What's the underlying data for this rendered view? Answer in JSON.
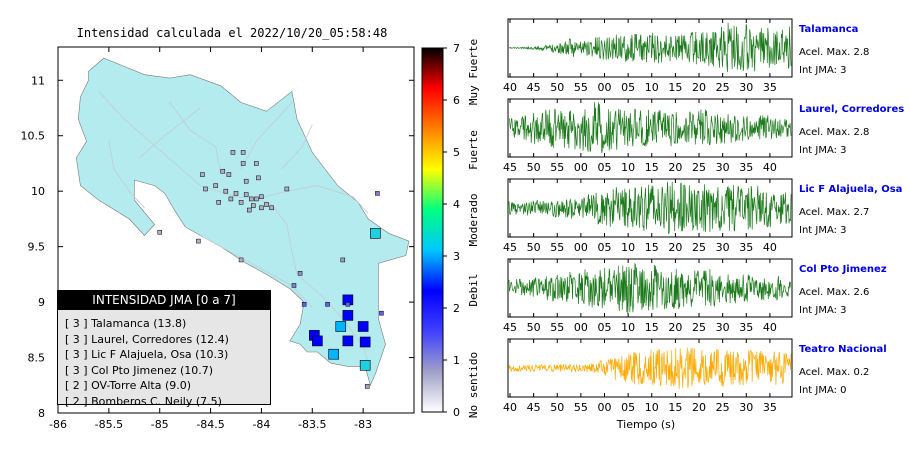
{
  "chart_data": [
    {
      "type": "map",
      "title": "Intensidad calculada el 2022/10/20_05:58:48",
      "xlim": [
        -86,
        -82.5
      ],
      "ylim": [
        8,
        11.3
      ],
      "x_ticks": [
        "-86",
        "-85.5",
        "-85",
        "-84.5",
        "-84",
        "-83.5",
        "-83"
      ],
      "y_ticks": [
        "8",
        "8.5",
        "9",
        "9.5",
        "10",
        "10.5",
        "11"
      ],
      "colorbar": {
        "range": [
          0,
          7
        ],
        "ticks": [
          "0",
          "1",
          "2",
          "3",
          "4",
          "5",
          "6",
          "7"
        ],
        "labels": [
          "No sentido",
          "Debil",
          "Moderado",
          "Fuerte",
          "Muy Fuerte"
        ],
        "colors": [
          "#ffffff",
          "#a0a0c8",
          "#4040ff",
          "#0000ff",
          "#00c8ff",
          "#00ff80",
          "#ffff00",
          "#ff8000",
          "#ff0000",
          "#000000"
        ]
      },
      "legend": {
        "title": "INTENSIDAD JMA [0 a 7]",
        "items": [
          "[ 3 ]  Talamanca (13.8)",
          "[ 3 ]  Laurel, Corredores (12.4)",
          "[ 3 ]  Lic F Alajuela, Osa (10.3)",
          "[ 3 ]  Col Pto Jimenez (10.7)",
          "[ 2 ]  OV-Torre Alta (9.0)",
          "[ 2 ]  Bomberos C. Neily (7.5)"
        ]
      },
      "stations": [
        {
          "lon": -82.88,
          "lat": 9.62,
          "color": "#20d0e0"
        },
        {
          "lon": -83.15,
          "lat": 9.02,
          "color": "#0000ff"
        },
        {
          "lon": -83.15,
          "lat": 8.88,
          "color": "#0000ff"
        },
        {
          "lon": -83.22,
          "lat": 8.78,
          "color": "#00b4ff"
        },
        {
          "lon": -83.48,
          "lat": 8.7,
          "color": "#0000ff"
        },
        {
          "lon": -83.45,
          "lat": 8.65,
          "color": "#0000ff"
        },
        {
          "lon": -83.15,
          "lat": 8.65,
          "color": "#0000ff"
        },
        {
          "lon": -83.0,
          "lat": 8.78,
          "color": "#0000ff"
        },
        {
          "lon": -82.98,
          "lat": 8.64,
          "color": "#0000ff"
        },
        {
          "lon": -83.29,
          "lat": 8.53,
          "color": "#00b4ff"
        },
        {
          "lon": -82.98,
          "lat": 8.43,
          "color": "#20d0e0"
        },
        {
          "lon": -83.58,
          "lat": 8.98,
          "color": "#6060ff"
        },
        {
          "lon": -83.35,
          "lat": 8.98,
          "color": "#6060ff"
        },
        {
          "lon": -83.15,
          "lat": 8.98,
          "color": "#6060ff"
        },
        {
          "lon": -82.82,
          "lat": 8.9,
          "color": "#6060ff"
        },
        {
          "lon": -83.68,
          "lat": 9.15,
          "color": "#8080d0"
        },
        {
          "lon": -83.62,
          "lat": 9.26,
          "color": "#9090c8"
        },
        {
          "lon": -83.2,
          "lat": 9.38,
          "color": "#a0a0c8"
        },
        {
          "lon": -82.96,
          "lat": 8.24,
          "color": "#a0a0c8"
        },
        {
          "lon": -82.86,
          "lat": 9.98,
          "color": "#8080d0"
        },
        {
          "lon": -84.03,
          "lat": 10.12,
          "color": "#b0b0c8"
        },
        {
          "lon": -83.75,
          "lat": 10.02,
          "color": "#b0b0c8"
        },
        {
          "lon": -84.15,
          "lat": 10.09,
          "color": "#b0b0c8"
        },
        {
          "lon": -84.32,
          "lat": 10.15,
          "color": "#b0b0c8"
        },
        {
          "lon": -84.45,
          "lat": 10.05,
          "color": "#b0b0c8"
        },
        {
          "lon": -84.55,
          "lat": 10.02,
          "color": "#b0b0c8"
        },
        {
          "lon": -84.35,
          "lat": 10.0,
          "color": "#b0b0c8"
        },
        {
          "lon": -84.25,
          "lat": 9.98,
          "color": "#b0b0c8"
        },
        {
          "lon": -84.15,
          "lat": 9.97,
          "color": "#b0b0c8"
        },
        {
          "lon": -84.1,
          "lat": 9.93,
          "color": "#b0b0c8"
        },
        {
          "lon": -84.05,
          "lat": 9.93,
          "color": "#b0b0c8"
        },
        {
          "lon": -84.0,
          "lat": 9.95,
          "color": "#b0b0c8"
        },
        {
          "lon": -83.95,
          "lat": 9.88,
          "color": "#b0b0c8"
        },
        {
          "lon": -84.08,
          "lat": 9.87,
          "color": "#b0b0c8"
        },
        {
          "lon": -84.2,
          "lat": 9.9,
          "color": "#b0b0c8"
        },
        {
          "lon": -84.3,
          "lat": 9.93,
          "color": "#b0b0c8"
        },
        {
          "lon": -84.42,
          "lat": 9.9,
          "color": "#b0b0c8"
        },
        {
          "lon": -84.0,
          "lat": 9.85,
          "color": "#b0b0c8"
        },
        {
          "lon": -84.12,
          "lat": 9.83,
          "color": "#b0b0c8"
        },
        {
          "lon": -83.9,
          "lat": 9.85,
          "color": "#b0b0c8"
        },
        {
          "lon": -84.58,
          "lat": 10.15,
          "color": "#b0b0c8"
        },
        {
          "lon": -84.28,
          "lat": 10.35,
          "color": "#b0b0c8"
        },
        {
          "lon": -84.18,
          "lat": 10.35,
          "color": "#b0b0c8"
        },
        {
          "lon": -84.05,
          "lat": 10.25,
          "color": "#b0b0c8"
        },
        {
          "lon": -84.18,
          "lat": 10.25,
          "color": "#b0b0c8"
        },
        {
          "lon": -84.38,
          "lat": 10.18,
          "color": "#b0b0c8"
        },
        {
          "lon": -84.62,
          "lat": 9.55,
          "color": "#b0b0c8"
        },
        {
          "lon": -85.0,
          "lat": 9.63,
          "color": "#b0b0c8"
        },
        {
          "lon": -84.2,
          "lat": 9.38,
          "color": "#b0b0c8"
        }
      ]
    },
    {
      "type": "line",
      "xlabel": "Tiempo (s)",
      "traces": [
        {
          "name": "Talamanca",
          "acel": "Acel. Max. 2.8",
          "int": "Int JMA: 3",
          "color": "#1a7a1a",
          "x_ticks": [
            "40",
            "45",
            "50",
            "55",
            "00",
            "05",
            "10",
            "15",
            "20",
            "25",
            "30",
            "35"
          ],
          "envelope": [
            0.02,
            0.03,
            0.05,
            0.1,
            0.2,
            0.35,
            0.3,
            0.4,
            0.45,
            0.55,
            0.5,
            0.55,
            0.6,
            0.55,
            0.5,
            0.6,
            0.65,
            0.75,
            1.0,
            0.9,
            0.95,
            0.85,
            0.75,
            0.8
          ],
          "seed": 11
        },
        {
          "name": "Laurel, Corredores",
          "acel": "Acel. Max. 2.8",
          "int": "Int JMA: 3",
          "color": "#1a7a1a",
          "x_ticks": [
            "45",
            "50",
            "55",
            "00",
            "05",
            "10",
            "15",
            "20",
            "25",
            "30",
            "35",
            "40"
          ],
          "envelope": [
            0.35,
            0.45,
            0.6,
            0.7,
            0.8,
            0.75,
            0.85,
            1.0,
            0.9,
            0.8,
            0.7,
            0.75,
            0.65,
            0.7,
            0.6,
            0.65,
            0.7,
            0.6,
            0.55,
            0.5,
            0.45,
            0.5,
            0.4,
            0.35
          ],
          "seed": 23
        },
        {
          "name": "Lic F Alajuela, Osa",
          "acel": "Acel. Max. 2.7",
          "int": "Int JMA: 3",
          "color": "#1a7a1a",
          "x_ticks": [
            "45",
            "50",
            "55",
            "00",
            "05",
            "10",
            "15",
            "20",
            "25",
            "30",
            "35",
            "40"
          ],
          "envelope": [
            0.25,
            0.25,
            0.3,
            0.3,
            0.35,
            0.4,
            0.45,
            0.55,
            0.7,
            0.8,
            0.75,
            0.85,
            0.9,
            1.0,
            0.95,
            0.9,
            0.95,
            0.85,
            0.9,
            0.8,
            0.85,
            0.75,
            0.7,
            0.6
          ],
          "seed": 37
        },
        {
          "name": "Col Pto Jimenez",
          "acel": "Acel. Max. 2.6",
          "int": "Int JMA: 3",
          "color": "#1a7a1a",
          "x_ticks": [
            "45",
            "50",
            "55",
            "00",
            "05",
            "10",
            "15",
            "20",
            "25",
            "30",
            "35",
            "40"
          ],
          "envelope": [
            0.3,
            0.35,
            0.4,
            0.45,
            0.5,
            0.6,
            0.7,
            0.75,
            0.8,
            0.9,
            1.0,
            0.85,
            0.9,
            0.75,
            0.8,
            0.7,
            0.75,
            0.65,
            0.6,
            0.55,
            0.5,
            0.5,
            0.45,
            0.4
          ],
          "seed": 51
        },
        {
          "name": "Teatro Nacional",
          "acel": "Acel. Max. 0.2",
          "int": "Int JMA: 0",
          "color": "#ffaa00",
          "x_ticks": [
            "40",
            "45",
            "50",
            "55",
            "00",
            "05",
            "10",
            "15",
            "20",
            "25",
            "30",
            "35"
          ],
          "envelope": [
            0.12,
            0.12,
            0.13,
            0.13,
            0.14,
            0.15,
            0.15,
            0.2,
            0.35,
            0.5,
            0.6,
            0.65,
            0.7,
            0.75,
            0.8,
            0.75,
            0.7,
            0.75,
            0.7,
            0.65,
            0.7,
            0.6,
            0.65,
            0.6
          ],
          "seed": 73
        }
      ]
    }
  ]
}
